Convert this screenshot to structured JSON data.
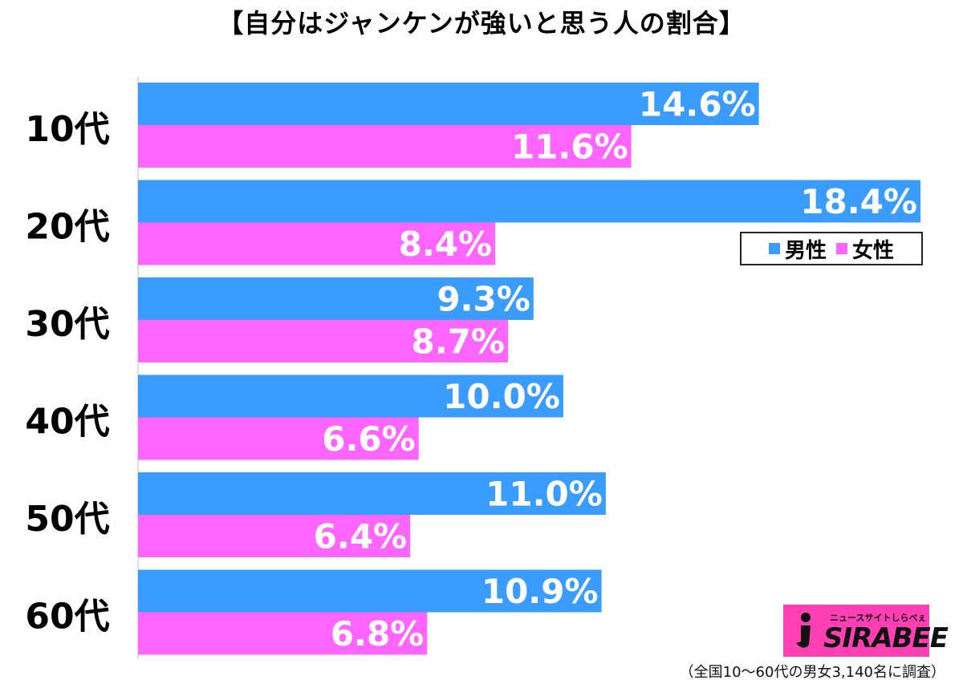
{
  "chart_data": {
    "type": "bar",
    "orientation": "horizontal",
    "title": "【自分はジャンケンが強いと思う人の割合】",
    "categories": [
      "10代",
      "20代",
      "30代",
      "40代",
      "50代",
      "60代"
    ],
    "series": [
      {
        "name": "男性",
        "values": [
          14.6,
          18.4,
          9.3,
          10.0,
          11.0,
          10.9
        ],
        "labels": [
          "14.6%",
          "18.4%",
          "9.3%",
          "10.0%",
          "11.0%",
          "10.9%"
        ],
        "color": "#3a9cff"
      },
      {
        "name": "女性",
        "values": [
          11.6,
          8.4,
          8.7,
          6.6,
          6.4,
          6.8
        ],
        "labels": [
          "11.6%",
          "8.4%",
          "8.7%",
          "6.6%",
          "6.4%",
          "6.8%"
        ],
        "color": "#ff66ff"
      }
    ],
    "unit": "%",
    "xlim": [
      0,
      18.4
    ],
    "grid": false,
    "legend_position": "right"
  },
  "logo": {
    "subtitle": "ニュースサイトしらべぇ",
    "name": "SIRABEE",
    "color": "#ff3fb4"
  },
  "footnote": "（全国10～60代の男女3,140名に調査）"
}
